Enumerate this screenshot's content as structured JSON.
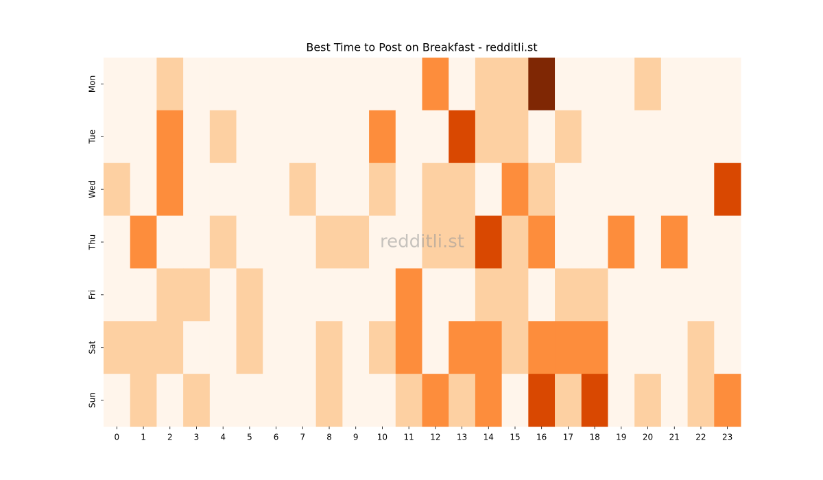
{
  "chart_data": {
    "type": "heatmap",
    "title": "Best Time to Post on Breakfast - redditli.st",
    "watermark": "redditli.st",
    "x_categories": [
      0,
      1,
      2,
      3,
      4,
      5,
      6,
      7,
      8,
      9,
      10,
      11,
      12,
      13,
      14,
      15,
      16,
      17,
      18,
      19,
      20,
      21,
      22,
      23
    ],
    "y_categories": [
      "Mon",
      "Tue",
      "Wed",
      "Thu",
      "Fri",
      "Sat",
      "Sun"
    ],
    "colormap": [
      "#fff5eb",
      "#fdd0a2",
      "#fd8d3c",
      "#d94801",
      "#7f2704"
    ],
    "values": [
      [
        0,
        0,
        1,
        0,
        0,
        0,
        0,
        0,
        0,
        0,
        0,
        0,
        2,
        0,
        1,
        1,
        4,
        0,
        0,
        0,
        1,
        0,
        0,
        0
      ],
      [
        0,
        0,
        2,
        0,
        1,
        0,
        0,
        0,
        0,
        0,
        2,
        0,
        0,
        3,
        1,
        1,
        0,
        1,
        0,
        0,
        0,
        0,
        0,
        0
      ],
      [
        1,
        0,
        2,
        0,
        0,
        0,
        0,
        1,
        0,
        0,
        1,
        0,
        1,
        1,
        0,
        2,
        1,
        0,
        0,
        0,
        0,
        0,
        0,
        3
      ],
      [
        0,
        2,
        0,
        0,
        1,
        0,
        0,
        0,
        1,
        1,
        0,
        0,
        1,
        1,
        3,
        1,
        2,
        0,
        0,
        2,
        0,
        2,
        0,
        0
      ],
      [
        0,
        0,
        1,
        1,
        0,
        1,
        0,
        0,
        0,
        0,
        0,
        2,
        0,
        0,
        1,
        1,
        0,
        1,
        1,
        0,
        0,
        0,
        0,
        0
      ],
      [
        1,
        1,
        1,
        0,
        0,
        1,
        0,
        0,
        1,
        0,
        1,
        2,
        0,
        2,
        2,
        1,
        2,
        2,
        2,
        0,
        0,
        0,
        1,
        0
      ],
      [
        0,
        1,
        0,
        1,
        0,
        0,
        0,
        0,
        1,
        0,
        0,
        1,
        2,
        1,
        2,
        0,
        3,
        1,
        3,
        0,
        1,
        0,
        1,
        2
      ]
    ]
  }
}
